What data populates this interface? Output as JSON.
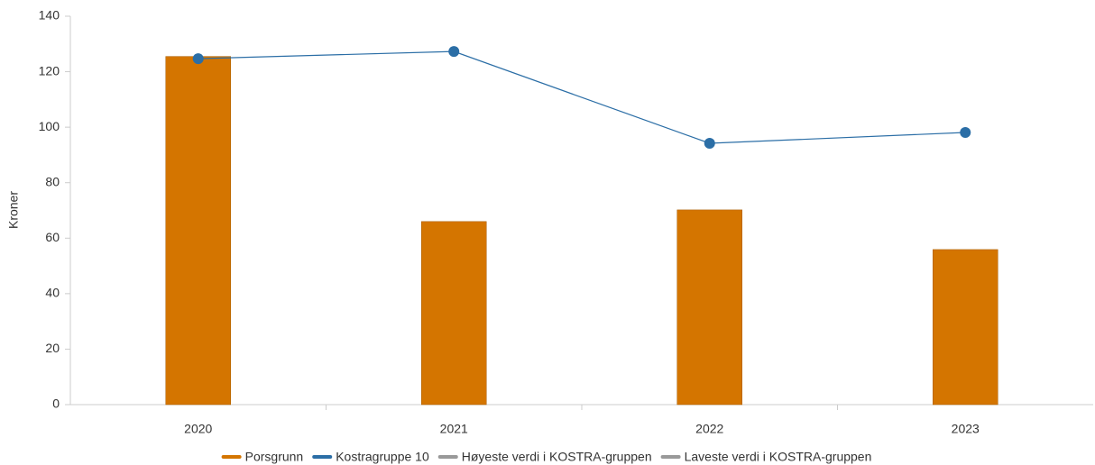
{
  "chart_data": {
    "type": "bar",
    "y_label": "Kroner",
    "categories": [
      "2020",
      "2021",
      "2022",
      "2023"
    ],
    "series": [
      {
        "name": "Porsgrunn",
        "type": "bar",
        "color": "#d47500",
        "values": [
          125.5,
          66,
          70.2,
          55.9
        ]
      },
      {
        "name": "Kostragruppe 10",
        "type": "line",
        "color": "#2b6ea6",
        "values": [
          124.7,
          127.3,
          94.2,
          98.1
        ]
      },
      {
        "name": "Høyeste verdi i KOSTRA-gruppen",
        "type": "line",
        "color": "#999999",
        "values": [
          null,
          null,
          null,
          null
        ]
      },
      {
        "name": "Laveste verdi i KOSTRA-gruppen",
        "type": "line",
        "color": "#999999",
        "values": [
          null,
          null,
          null,
          null
        ]
      }
    ],
    "ylim": [
      0,
      140
    ],
    "yticks": [
      0,
      20,
      40,
      60,
      80,
      100,
      120,
      140
    ],
    "grid": false
  }
}
